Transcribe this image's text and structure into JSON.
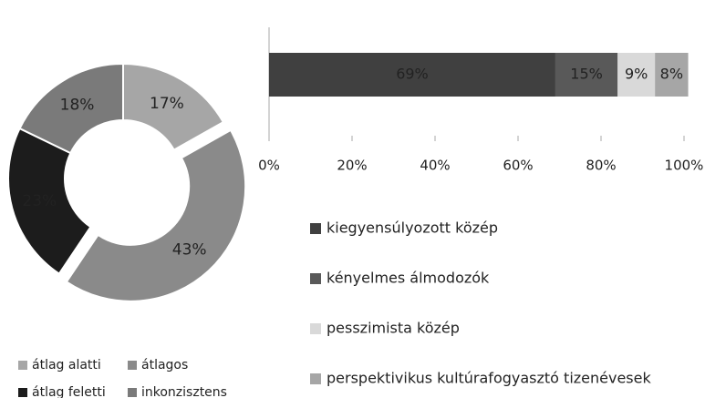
{
  "chart_data": [
    {
      "type": "pie",
      "donut": true,
      "exploded": "átlagos",
      "categories": [
        "átlag alatti",
        "átlagos",
        "átlag feletti",
        "inkonzisztens"
      ],
      "values": [
        17,
        43,
        23,
        18
      ],
      "value_labels": [
        "17%",
        "43%",
        "23%",
        "18%"
      ],
      "colors": [
        "#a6a6a6",
        "#8a8a8a",
        "#1c1c1c",
        "#7a7a7a"
      ],
      "legend": "bottom"
    },
    {
      "type": "stacked_bar",
      "orientation": "horizontal",
      "series": [
        {
          "name": "kiegyensúlyozott közép",
          "color": "#404040",
          "values": [
            69
          ],
          "value_labels": [
            "69%"
          ]
        },
        {
          "name": "kényelmes álmodozók",
          "color": "#595959",
          "values": [
            15
          ],
          "value_labels": [
            "15%"
          ]
        },
        {
          "name": "pesszimista közép",
          "color": "#d9d9d9",
          "values": [
            9
          ],
          "value_labels": [
            "9%"
          ]
        },
        {
          "name": "perspektivikus kultúrafogyasztó tizenévesek",
          "color": "#a6a6a6",
          "values": [
            8
          ],
          "value_labels": [
            "8%"
          ]
        }
      ],
      "xlim": [
        0,
        100
      ],
      "xticks": [
        {
          "value": 0,
          "label": "0%"
        },
        {
          "value": 20,
          "label": "20%"
        },
        {
          "value": 40,
          "label": "40%"
        },
        {
          "value": 60,
          "label": "60%"
        },
        {
          "value": 80,
          "label": "80%"
        },
        {
          "value": 100,
          "label": "100%"
        }
      ],
      "legend": "bottom"
    }
  ]
}
